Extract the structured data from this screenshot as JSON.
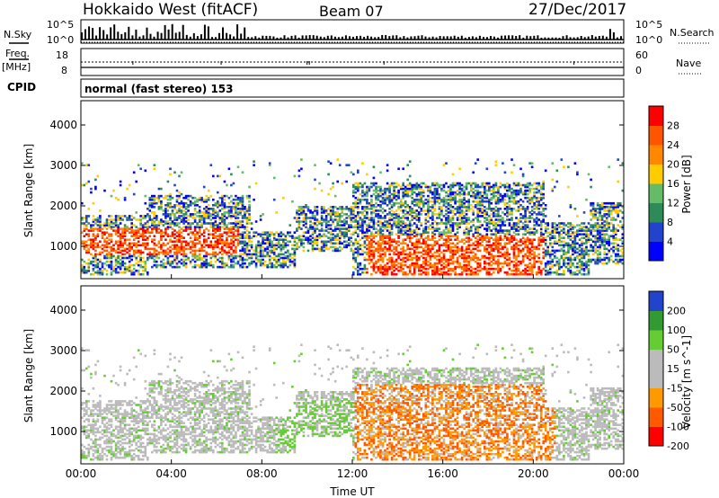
{
  "header": {
    "title": "Hokkaido West (fitACF)",
    "beam": "Beam 07",
    "date": "27/Dec/2017"
  },
  "status_panel": {
    "nsky_label": "N.Sky",
    "nsearch_label": "N.Search",
    "freq_label": "Freq.",
    "freq_unit": "[MHz]",
    "nave_label": "Nave",
    "cpid_label": "CPID",
    "cpid_text": "normal (fast stereo) 153",
    "noise_ticks": [
      "10^5",
      "10^0"
    ],
    "freq_ticks": [
      "18",
      "8"
    ],
    "nave_ticks": [
      "60",
      "0"
    ]
  },
  "colors": {
    "power": [
      "#0000ff",
      "#2244cc",
      "#2e8b57",
      "#66bb66",
      "#ffcc00",
      "#ff8800",
      "#ff5500",
      "#ff0000"
    ],
    "velocity": [
      "#ff0000",
      "#ff5a00",
      "#ff9900",
      "#bbbbbb",
      "#bbbbbb",
      "#66cc33",
      "#339933",
      "#2244cc"
    ]
  },
  "chart_data": [
    {
      "type": "heatmap",
      "panel": "power",
      "ylabel": "Slant Range [km]",
      "xlabel": "",
      "ylim": [
        200,
        4600
      ],
      "yticks": [
        "1000",
        "2000",
        "3000",
        "4000"
      ],
      "colorbar_label": "Power [dB]",
      "colorbar_ticks": [
        "4",
        "8",
        "12",
        "16",
        "20",
        "24",
        "28"
      ],
      "colorbar_range": [
        0,
        32
      ]
    },
    {
      "type": "heatmap",
      "panel": "velocity",
      "ylabel": "Slant Range [km]",
      "xlabel": "Time UT",
      "ylim": [
        200,
        4600
      ],
      "yticks": [
        "1000",
        "2000",
        "3000",
        "4000"
      ],
      "xticks": [
        "00:00",
        "04:00",
        "08:00",
        "12:00",
        "16:00",
        "20:00",
        "00:00"
      ],
      "xlim_hours": [
        0,
        24
      ],
      "colorbar_label": "Velocity [m s^-1]",
      "colorbar_ticks": [
        "200",
        "100",
        "50",
        "15",
        "-15",
        "-50",
        "-100",
        "-200"
      ]
    }
  ]
}
